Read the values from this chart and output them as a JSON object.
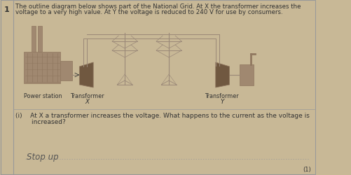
{
  "question_number": "1",
  "background_color": "#c8b896",
  "border_color": "#999999",
  "text_color": "#333333",
  "gray": "#999999",
  "dark_brown": "#8a6a4a",
  "medium_brown": "#a07850",
  "light_tan": "#b8a080",
  "diagram_color": "#9a8878",
  "title_text_line1": "The outline diagram below shows part of the National Grid. At X the transformer increases the",
  "title_text_line2": "voltage to a very high value. At Y the voltage is reduced to 240 V for use by consumers.",
  "label_power_station": "Power station",
  "label_transformer": "Transformer",
  "label_x": "X",
  "label_y": "Y",
  "question_i_line1": "(i)    At X a transformer increases the voltage. What happens to the current as the voltage is",
  "question_i_line2": "        increased?",
  "answer_text": "Stop up",
  "mark": "(1)",
  "title_fontsize": 6.2,
  "label_fontsize": 5.8,
  "question_fontsize": 6.5,
  "answer_fontsize": 8.5,
  "mark_fontsize": 6.0
}
